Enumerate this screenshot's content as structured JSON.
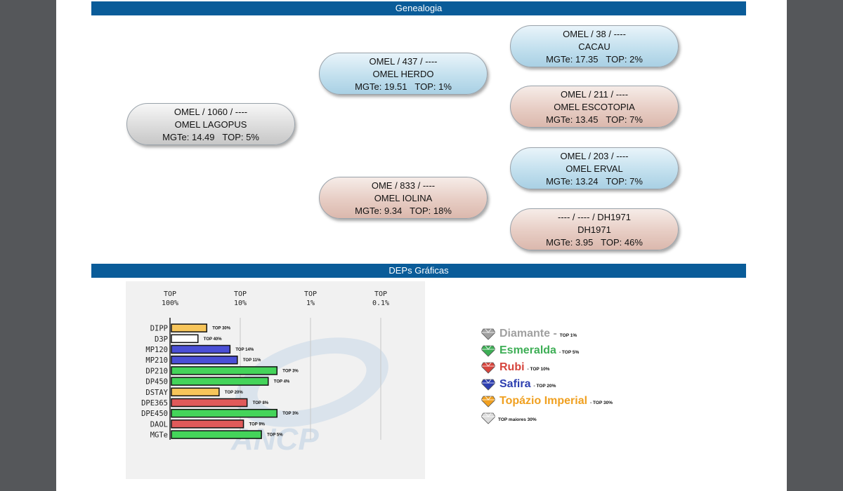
{
  "sections": {
    "genealogia": "Genealogia",
    "deps": "DEPs Gráficas"
  },
  "pedigree": {
    "animal": {
      "id": "OMEL / 1060 / ----",
      "name": "OMEL LAGOPUS",
      "mgte": "MGTe: 14.49",
      "top": "TOP: 5%"
    },
    "sire": {
      "id": "OMEL / 437 / ----",
      "name": "OMEL HERDO",
      "mgte": "MGTe: 19.51",
      "top": "TOP: 1%"
    },
    "dam": {
      "id": "OME / 833 / ----",
      "name": "OMEL IOLINA",
      "mgte": "MGTe: 9.34",
      "top": "TOP: 18%"
    },
    "sire_sire": {
      "id": "OMEL / 38 / ----",
      "name": "CACAU",
      "mgte": "MGTe: 17.35",
      "top": "TOP: 2%"
    },
    "sire_dam": {
      "id": "OMEL / 211 / ----",
      "name": "OMEL ESCOTOPIA",
      "mgte": "MGTe: 13.45",
      "top": "TOP: 7%"
    },
    "dam_sire": {
      "id": "OMEL / 203 / ----",
      "name": "OMEL ERVAL",
      "mgte": "MGTe: 13.24",
      "top": "TOP: 7%"
    },
    "dam_dam": {
      "id": "---- / ---- / DH1971",
      "name": "DH1971",
      "mgte": "MGTe: 3.95",
      "top": "TOP: 46%"
    }
  },
  "chart_data": {
    "type": "bar",
    "orientation": "horizontal",
    "x_headers": [
      {
        "line1": "TOP",
        "line2": "100%"
      },
      {
        "line1": "TOP",
        "line2": "10%"
      },
      {
        "line1": "TOP",
        "line2": "1%"
      },
      {
        "line1": "TOP",
        "line2": "0.1%"
      }
    ],
    "x_scale": "log (TOP percentage)",
    "xlim_top_percent": [
      100,
      0.1
    ],
    "categories": [
      "DIPP",
      "D3P",
      "MP120",
      "MP210",
      "DP210",
      "DP450",
      "DSTAY",
      "DPE365",
      "DPE450",
      "DAOL",
      "MGTe"
    ],
    "top_percent": [
      30,
      40,
      14,
      11,
      3,
      4,
      20,
      8,
      3,
      9,
      5
    ],
    "bar_notes": [
      "TOP 30%",
      "TOP 40%",
      "TOP 14%",
      "TOP 11%",
      "TOP 3%",
      "TOP 4%",
      "TOP 20%",
      "TOP 8%",
      "TOP 3%",
      "TOP 9%",
      "TOP 5%"
    ],
    "bar_colors": [
      "#f7c55a",
      "#ffffff",
      "#4a4fd6",
      "#4a4fd6",
      "#44d45a",
      "#44d45a",
      "#f7c55a",
      "#e05a5a",
      "#44d45a",
      "#e05a5a",
      "#44d45a"
    ],
    "watermark_text": "ANCP"
  },
  "legend": [
    {
      "name": "Diamante",
      "dash": " - ",
      "top": "TOP 1%",
      "color": "#a0a0a0"
    },
    {
      "name": "Esmeralda",
      "dash": "",
      "top": "- TOP 5%",
      "color": "#3dae55"
    },
    {
      "name": "Rubi",
      "dash": "",
      "top": "- TOP 10%",
      "color": "#d6453d"
    },
    {
      "name": "Safira",
      "dash": "",
      "top": "- TOP 20%",
      "color": "#2e3fb0"
    },
    {
      "name": "Topázio Imperial",
      "dash": "",
      "top": "- TOP 30%",
      "color": "#f0a020"
    },
    {
      "name": "",
      "dash": "",
      "top": "TOP maiores 30%",
      "color": "#dcdcdc"
    }
  ],
  "colors": {
    "section_bar": "#0a5c99",
    "frame": "#55575a"
  }
}
